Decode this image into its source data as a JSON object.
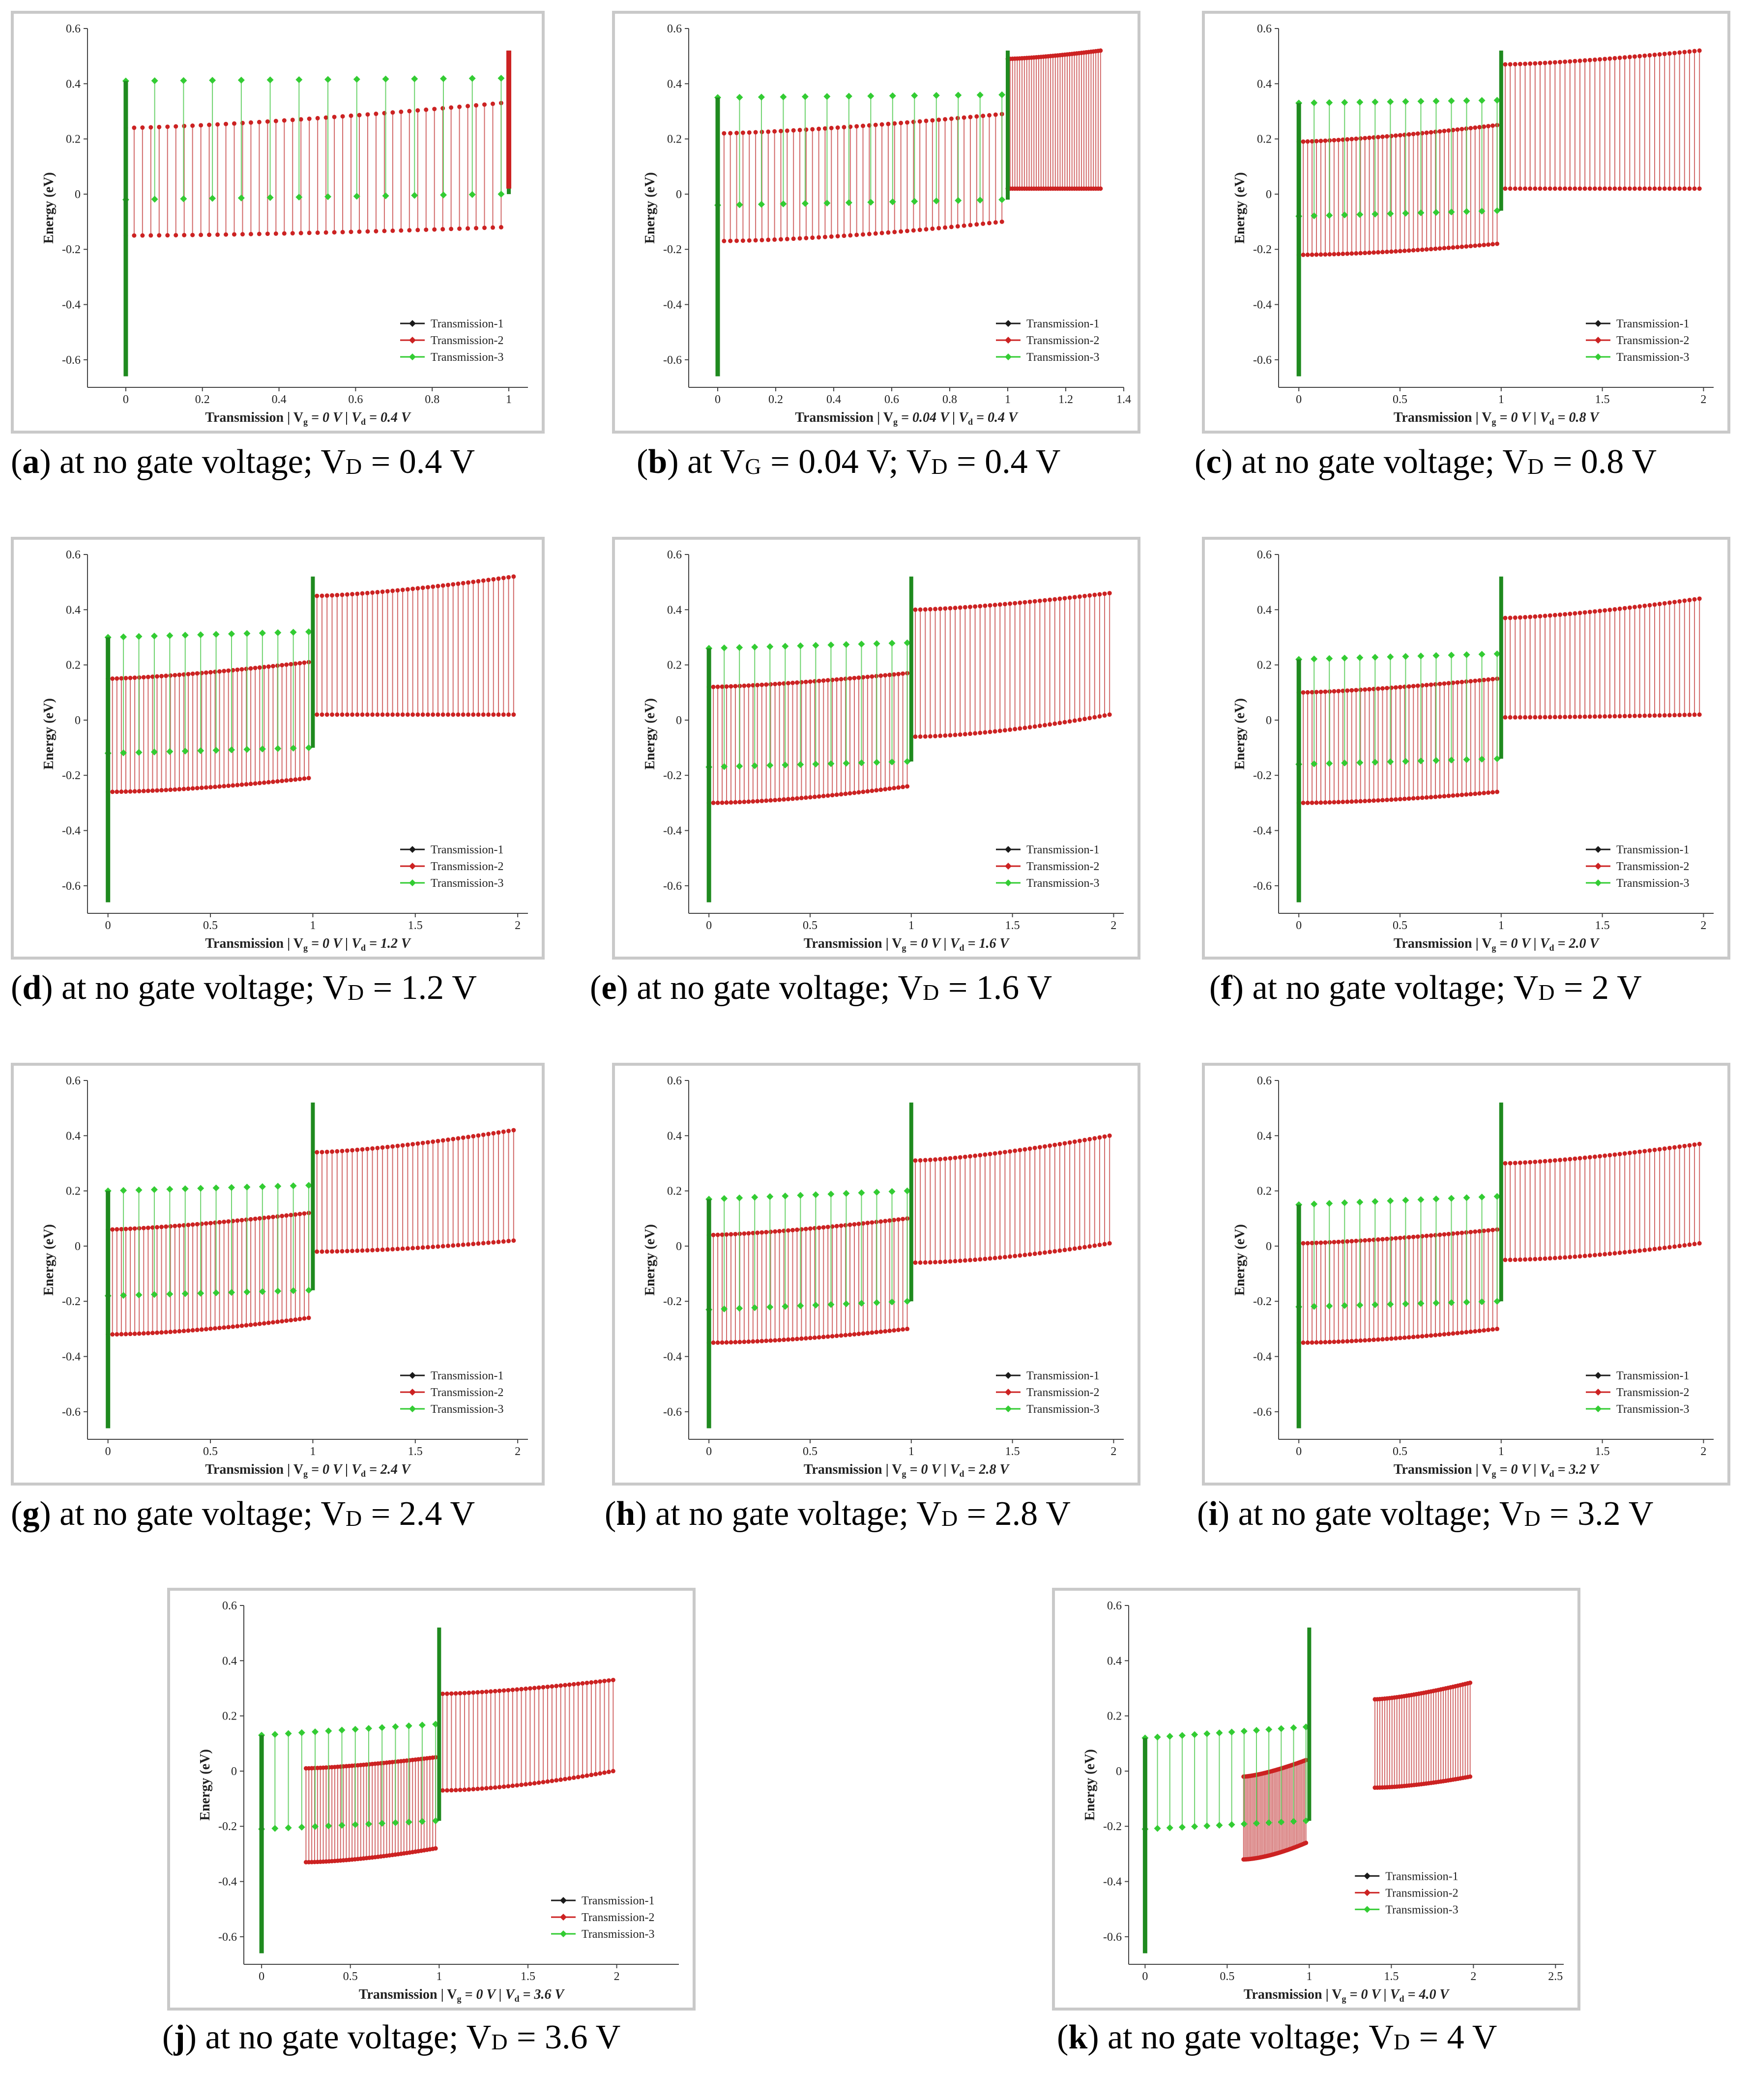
{
  "figure": {
    "panels": [
      {
        "letter": "a",
        "caption_pre": "at no gate voltage; V",
        "caption_sub": "D",
        "caption_post": " = 0.4 V",
        "xlabel": "Transmission | V",
        "xlabel_g": "g",
        "xlabel_mid": " = 0 V | V",
        "xlabel_d": "d",
        "xlabel_end": " = 0.4 V"
      },
      {
        "letter": "b",
        "caption_pre": "at V",
        "caption_sub1": "G",
        "caption_mid": " = 0.04 V; V",
        "caption_sub": "D",
        "caption_post": " = 0.4 V",
        "xlabel": "Transmission | V",
        "xlabel_g": "g",
        "xlabel_mid": " = 0.04 V | V",
        "xlabel_d": "d",
        "xlabel_end": " = 0.4 V"
      },
      {
        "letter": "c",
        "caption_pre": "at no gate voltage; V",
        "caption_sub": "D",
        "caption_post": " = 0.8 V",
        "xlabel": "Transmission | V",
        "xlabel_g": "g",
        "xlabel_mid": " = 0 V | V",
        "xlabel_d": "d",
        "xlabel_end": " = 0.8 V"
      },
      {
        "letter": "d",
        "caption_pre": "at no gate voltage; V",
        "caption_sub": "D",
        "caption_post": " = 1.2 V",
        "xlabel": "Transmission | V",
        "xlabel_g": "g",
        "xlabel_mid": " = 0 V | V",
        "xlabel_d": "d",
        "xlabel_end": " = 1.2 V"
      },
      {
        "letter": "e",
        "caption_pre": "at no gate voltage; V",
        "caption_sub": "D",
        "caption_post": " = 1.6 V",
        "xlabel": "Transmission | V",
        "xlabel_g": "g",
        "xlabel_mid": " = 0 V | V",
        "xlabel_d": "d",
        "xlabel_end": " = 1.6 V"
      },
      {
        "letter": "f",
        "caption_pre": "at no gate voltage; V",
        "caption_sub": "D",
        "caption_post": " = 2 V",
        "xlabel": "Transmission | V",
        "xlabel_g": "g",
        "xlabel_mid": " = 0 V | V",
        "xlabel_d": "d",
        "xlabel_end": " = 2.0 V"
      },
      {
        "letter": "g",
        "caption_pre": "at no gate voltage; V",
        "caption_sub": "D",
        "caption_post": " = 2.4 V",
        "xlabel": "Transmission | V",
        "xlabel_g": "g",
        "xlabel_mid": " = 0 V | V",
        "xlabel_d": "d",
        "xlabel_end": " = 2.4 V"
      },
      {
        "letter": "h",
        "caption_pre": "at no gate voltage; V",
        "caption_sub": "D",
        "caption_post": " = 2.8 V",
        "xlabel": "Transmission | V",
        "xlabel_g": "g",
        "xlabel_mid": " = 0 V | V",
        "xlabel_d": "d",
        "xlabel_end": " = 2.8 V"
      },
      {
        "letter": "i",
        "caption_pre": "at no gate voltage; V",
        "caption_sub": "D",
        "caption_post": " = 3.2 V",
        "xlabel": "Transmission | V",
        "xlabel_g": "g",
        "xlabel_mid": " = 0 V | V",
        "xlabel_d": "d",
        "xlabel_end": " = 3.2 V"
      },
      {
        "letter": "j",
        "caption_pre": "at no gate voltage; V",
        "caption_sub": "D",
        "caption_post": " = 3.6 V",
        "xlabel": "Transmission | V",
        "xlabel_g": "g",
        "xlabel_mid": " = 0 V | V",
        "xlabel_d": "d",
        "xlabel_end": " = 3.6 V"
      },
      {
        "letter": "k",
        "caption_pre": "at no gate voltage; V",
        "caption_sub": "D",
        "caption_post": " = 4 V",
        "xlabel": "Transmission | V",
        "xlabel_g": "g",
        "xlabel_mid": " = 0 V | V",
        "xlabel_d": "d",
        "xlabel_end": " = 4.0 V"
      }
    ],
    "colors": {
      "series1": "#1a1a1a",
      "series2": "#cc2222",
      "series3": "#33cc33",
      "frame": "#c9c9c9"
    }
  },
  "chart_data": [
    {
      "id": "a",
      "type": "scatter",
      "title": "",
      "xlabel": "Transmission | Vg = 0 V | Vd = 0.4 V",
      "ylabel": "Energy (eV)",
      "xlim": [
        -0.1,
        1.05
      ],
      "ylim": [
        -0.7,
        0.6
      ],
      "xticks": [
        0,
        0.2,
        0.4,
        0.6,
        0.8,
        1
      ],
      "yticks": [
        -0.6,
        -0.4,
        -0.2,
        0,
        0.2,
        0.4,
        0.6
      ],
      "legend": [
        "Transmission-1",
        "Transmission-2",
        "Transmission-3"
      ],
      "legend_position": "bottom-right",
      "red_band": {
        "x": [
          0,
          0.98
        ],
        "top": [
          0.24,
          0.33
        ],
        "bottom": [
          -0.15,
          -0.12
        ]
      },
      "red_step": null,
      "green_band": {
        "x": [
          0,
          0.98
        ],
        "top": [
          0.41,
          0.42
        ],
        "bottom": [
          -0.02,
          0.0
        ]
      },
      "green_step": null
    },
    {
      "id": "b",
      "type": "scatter",
      "title": "",
      "xlabel": "Transmission | Vg = 0.04 V | Vd = 0.4 V",
      "ylabel": "Energy (eV)",
      "xlim": [
        -0.1,
        1.4
      ],
      "ylim": [
        -0.7,
        0.6
      ],
      "xticks": [
        0,
        0.2,
        0.4,
        0.6,
        0.8,
        1,
        1.2,
        1.4
      ],
      "yticks": [
        -0.6,
        -0.4,
        -0.2,
        0,
        0.2,
        0.4,
        0.6
      ],
      "legend": [
        "Transmission-1",
        "Transmission-2",
        "Transmission-3"
      ],
      "legend_position": "bottom-right",
      "red_band": {
        "x": [
          0,
          0.98
        ],
        "top": [
          0.22,
          0.29
        ],
        "bottom": [
          -0.17,
          -0.1
        ]
      },
      "red_step": {
        "x": [
          1.0,
          1.32
        ],
        "top": [
          0.49,
          0.52
        ],
        "bottom": [
          0.02,
          0.02
        ]
      },
      "green_band": {
        "x": [
          0,
          0.98
        ],
        "top": [
          0.35,
          0.36
        ],
        "bottom": [
          -0.04,
          -0.02
        ]
      },
      "green_step": null
    },
    {
      "id": "c",
      "type": "scatter",
      "title": "",
      "xlabel": "Transmission | Vg = 0 V | Vd = 0.8 V",
      "ylabel": "Energy (eV)",
      "xlim": [
        -0.1,
        2.05
      ],
      "ylim": [
        -0.7,
        0.6
      ],
      "xticks": [
        0,
        0.5,
        1,
        1.5,
        2
      ],
      "yticks": [
        -0.6,
        -0.4,
        -0.2,
        0,
        0.2,
        0.4,
        0.6
      ],
      "legend": [
        "Transmission-1",
        "Transmission-2",
        "Transmission-3"
      ],
      "legend_position": "bottom-right",
      "red_band": {
        "x": [
          0,
          0.98
        ],
        "top": [
          0.19,
          0.25
        ],
        "bottom": [
          -0.22,
          -0.18
        ]
      },
      "red_step": {
        "x": [
          1.02,
          1.98
        ],
        "top": [
          0.47,
          0.52
        ],
        "bottom": [
          0.02,
          0.02
        ]
      },
      "green_band": {
        "x": [
          0,
          0.98
        ],
        "top": [
          0.33,
          0.34
        ],
        "bottom": [
          -0.08,
          -0.06
        ]
      },
      "green_step": null
    },
    {
      "id": "d",
      "type": "scatter",
      "title": "",
      "xlabel": "Transmission | Vg = 0 V | Vd = 1.2 V",
      "ylabel": "Energy (eV)",
      "xlim": [
        -0.1,
        2.05
      ],
      "ylim": [
        -0.7,
        0.6
      ],
      "xticks": [
        0,
        0.5,
        1,
        1.5,
        2
      ],
      "yticks": [
        -0.6,
        -0.4,
        -0.2,
        0,
        0.2,
        0.4,
        0.6
      ],
      "legend": [
        "Transmission-1",
        "Transmission-2",
        "Transmission-3"
      ],
      "legend_position": "bottom-right",
      "red_band": {
        "x": [
          0,
          0.98
        ],
        "top": [
          0.15,
          0.21
        ],
        "bottom": [
          -0.26,
          -0.21
        ]
      },
      "red_step": {
        "x": [
          1.02,
          1.98
        ],
        "top": [
          0.45,
          0.52
        ],
        "bottom": [
          0.02,
          0.02
        ]
      },
      "green_band": {
        "x": [
          0,
          0.98
        ],
        "top": [
          0.3,
          0.32
        ],
        "bottom": [
          -0.12,
          -0.1
        ]
      },
      "green_step": null
    },
    {
      "id": "e",
      "type": "scatter",
      "title": "",
      "xlabel": "Transmission | Vg = 0 V | Vd = 1.6 V",
      "ylabel": "Energy (eV)",
      "xlim": [
        -0.1,
        2.05
      ],
      "ylim": [
        -0.7,
        0.6
      ],
      "xticks": [
        0,
        0.5,
        1,
        1.5,
        2
      ],
      "yticks": [
        -0.6,
        -0.4,
        -0.2,
        0,
        0.2,
        0.4,
        0.6
      ],
      "legend": [
        "Transmission-1",
        "Transmission-2",
        "Transmission-3"
      ],
      "legend_position": "bottom-right",
      "red_band": {
        "x": [
          0,
          0.98
        ],
        "top": [
          0.12,
          0.17
        ],
        "bottom": [
          -0.3,
          -0.24
        ]
      },
      "red_step": {
        "x": [
          1.02,
          1.98
        ],
        "top": [
          0.4,
          0.46
        ],
        "bottom": [
          -0.06,
          0.02
        ]
      },
      "green_band": {
        "x": [
          0,
          0.98
        ],
        "top": [
          0.26,
          0.28
        ],
        "bottom": [
          -0.17,
          -0.15
        ]
      },
      "green_step": null
    },
    {
      "id": "f",
      "type": "scatter",
      "title": "",
      "xlabel": "Transmission | Vg = 0 V | Vd = 2.0 V",
      "ylabel": "Energy (eV)",
      "xlim": [
        -0.1,
        2.05
      ],
      "ylim": [
        -0.7,
        0.6
      ],
      "xticks": [
        0,
        0.5,
        1,
        1.5,
        2
      ],
      "yticks": [
        -0.6,
        -0.4,
        -0.2,
        0,
        0.2,
        0.4,
        0.6
      ],
      "legend": [
        "Transmission-1",
        "Transmission-2",
        "Transmission-3"
      ],
      "legend_position": "bottom-right",
      "red_band": {
        "x": [
          0,
          0.98
        ],
        "top": [
          0.1,
          0.15
        ],
        "bottom": [
          -0.3,
          -0.26
        ]
      },
      "red_step": {
        "x": [
          1.02,
          1.98
        ],
        "top": [
          0.37,
          0.44
        ],
        "bottom": [
          0.01,
          0.02
        ]
      },
      "green_band": {
        "x": [
          0,
          0.98
        ],
        "top": [
          0.22,
          0.24
        ],
        "bottom": [
          -0.16,
          -0.14
        ]
      },
      "green_step": null
    },
    {
      "id": "g",
      "type": "scatter",
      "title": "",
      "xlabel": "Transmission | Vg = 0 V | Vd = 2.4 V",
      "ylabel": "Energy (eV)",
      "xlim": [
        -0.1,
        2.05
      ],
      "ylim": [
        -0.7,
        0.6
      ],
      "xticks": [
        0,
        0.5,
        1,
        1.5,
        2
      ],
      "yticks": [
        -0.6,
        -0.4,
        -0.2,
        0,
        0.2,
        0.4,
        0.6
      ],
      "legend": [
        "Transmission-1",
        "Transmission-2",
        "Transmission-3"
      ],
      "legend_position": "bottom-right",
      "red_band": {
        "x": [
          0,
          0.98
        ],
        "top": [
          0.06,
          0.12
        ],
        "bottom": [
          -0.32,
          -0.26
        ]
      },
      "red_step": {
        "x": [
          1.02,
          1.98
        ],
        "top": [
          0.34,
          0.42
        ],
        "bottom": [
          -0.02,
          0.02
        ]
      },
      "green_band": {
        "x": [
          0,
          0.98
        ],
        "top": [
          0.2,
          0.22
        ],
        "bottom": [
          -0.18,
          -0.16
        ]
      },
      "green_step": null
    },
    {
      "id": "h",
      "type": "scatter",
      "title": "",
      "xlabel": "Transmission | Vg = 0 V | Vd = 2.8 V",
      "ylabel": "Energy (eV)",
      "xlim": [
        -0.1,
        2.05
      ],
      "ylim": [
        -0.7,
        0.6
      ],
      "xticks": [
        0,
        0.5,
        1,
        1.5,
        2
      ],
      "yticks": [
        -0.6,
        -0.4,
        -0.2,
        0,
        0.2,
        0.4,
        0.6
      ],
      "legend": [
        "Transmission-1",
        "Transmission-2",
        "Transmission-3"
      ],
      "legend_position": "bottom-right",
      "red_band": {
        "x": [
          0,
          0.98
        ],
        "top": [
          0.04,
          0.1
        ],
        "bottom": [
          -0.35,
          -0.3
        ]
      },
      "red_step": {
        "x": [
          1.02,
          1.98
        ],
        "top": [
          0.31,
          0.4
        ],
        "bottom": [
          -0.06,
          0.01
        ]
      },
      "green_band": {
        "x": [
          0,
          0.98
        ],
        "top": [
          0.17,
          0.2
        ],
        "bottom": [
          -0.23,
          -0.2
        ]
      },
      "green_step": null
    },
    {
      "id": "i",
      "type": "scatter",
      "title": "",
      "xlabel": "Transmission | Vg = 0 V | Vd = 3.2 V",
      "ylabel": "Energy (eV)",
      "xlim": [
        -0.1,
        2.05
      ],
      "ylim": [
        -0.7,
        0.6
      ],
      "xticks": [
        0,
        0.5,
        1,
        1.5,
        2
      ],
      "yticks": [
        -0.6,
        -0.4,
        -0.2,
        0,
        0.2,
        0.4,
        0.6
      ],
      "legend": [
        "Transmission-1",
        "Transmission-2",
        "Transmission-3"
      ],
      "legend_position": "bottom-right",
      "red_band": {
        "x": [
          0,
          0.98
        ],
        "top": [
          0.01,
          0.06
        ],
        "bottom": [
          -0.35,
          -0.3
        ]
      },
      "red_step": {
        "x": [
          1.02,
          1.98
        ],
        "top": [
          0.3,
          0.37
        ],
        "bottom": [
          -0.05,
          0.01
        ]
      },
      "green_band": {
        "x": [
          0,
          0.98
        ],
        "top": [
          0.15,
          0.18
        ],
        "bottom": [
          -0.22,
          -0.2
        ]
      },
      "green_step": null
    },
    {
      "id": "j",
      "type": "scatter",
      "title": "",
      "xlabel": "Transmission | Vg = 0 V | Vd = 3.6 V",
      "ylabel": "Energy (eV)",
      "xlim": [
        -0.1,
        2.35
      ],
      "ylim": [
        -0.7,
        0.6
      ],
      "xticks": [
        0,
        0.5,
        1,
        1.5,
        2
      ],
      "yticks": [
        -0.6,
        -0.4,
        -0.2,
        0,
        0.2,
        0.4,
        0.6
      ],
      "legend": [
        "Transmission-1",
        "Transmission-2",
        "Transmission-3"
      ],
      "legend_position": "bottom-right",
      "red_band": {
        "x": [
          0.25,
          0.98
        ],
        "top": [
          0.01,
          0.05
        ],
        "bottom": [
          -0.33,
          -0.28
        ]
      },
      "red_step": {
        "x": [
          1.02,
          1.98
        ],
        "top": [
          0.28,
          0.33
        ],
        "bottom": [
          -0.07,
          0.0
        ]
      },
      "green_band": {
        "x": [
          0,
          0.98
        ],
        "top": [
          0.13,
          0.17
        ],
        "bottom": [
          -0.21,
          -0.18
        ]
      },
      "green_step": null
    },
    {
      "id": "k",
      "type": "scatter",
      "title": "",
      "xlabel": "Transmission | Vg = 0 V | Vd = 4.0 V",
      "ylabel": "Energy (eV)",
      "xlim": [
        -0.1,
        2.55
      ],
      "ylim": [
        -0.7,
        0.6
      ],
      "xticks": [
        0,
        0.5,
        1,
        1.5,
        2,
        2.5
      ],
      "yticks": [
        -0.6,
        -0.4,
        -0.2,
        0,
        0.2,
        0.4,
        0.6
      ],
      "legend": [
        "Transmission-1",
        "Transmission-2",
        "Transmission-3"
      ],
      "legend_position": "center-right",
      "red_band": {
        "x": [
          0.6,
          0.98
        ],
        "top": [
          -0.02,
          0.04
        ],
        "bottom": [
          -0.32,
          -0.26
        ]
      },
      "red_step": {
        "x": [
          1.4,
          1.98
        ],
        "top": [
          0.26,
          0.32
        ],
        "bottom": [
          -0.06,
          -0.02
        ]
      },
      "green_band": {
        "x": [
          0,
          0.98
        ],
        "top": [
          0.12,
          0.16
        ],
        "bottom": [
          -0.21,
          -0.18
        ]
      },
      "green_step": null
    }
  ]
}
